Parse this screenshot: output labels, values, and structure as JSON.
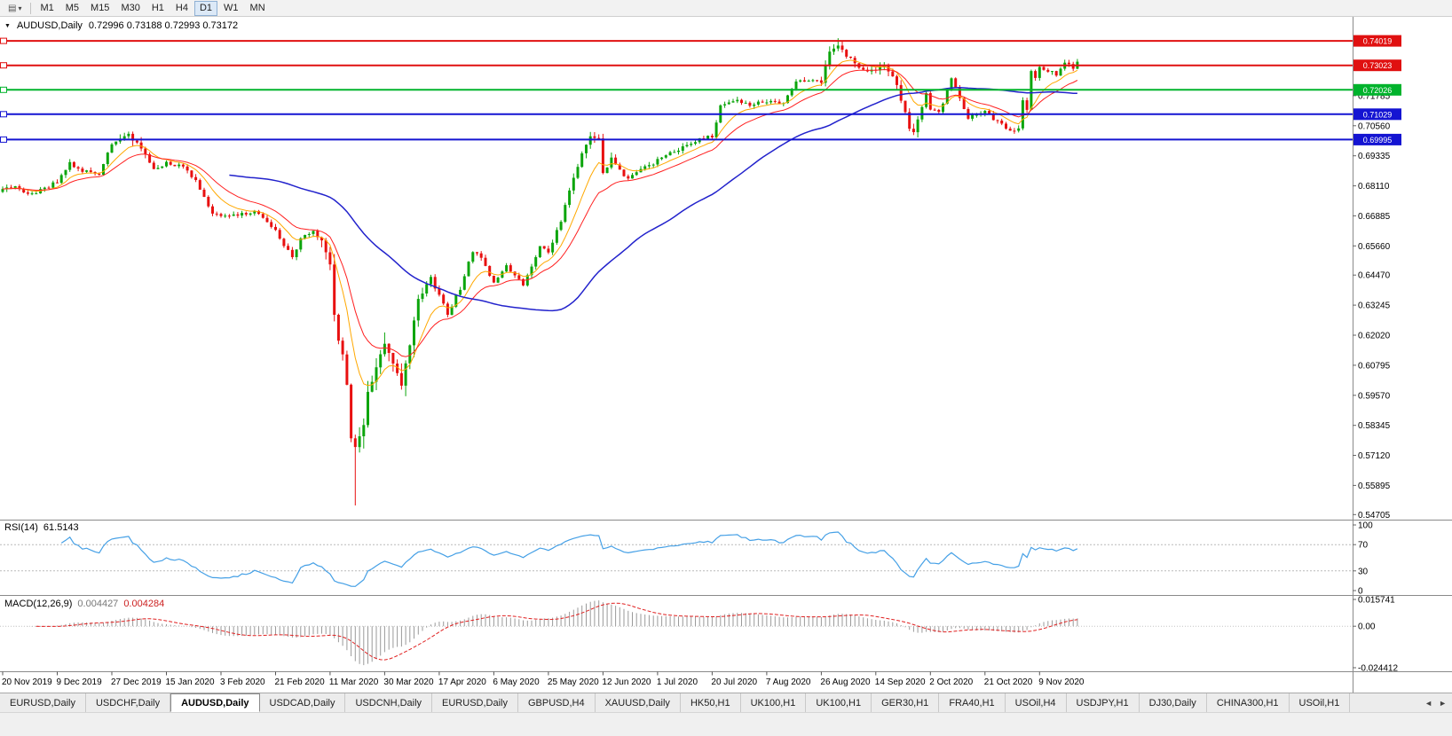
{
  "icons": {
    "chart": "▤",
    "caret": "▾",
    "collapse": "▼",
    "nav_left": "◄",
    "nav_right": "►"
  },
  "toolbar": {
    "timeframes": [
      {
        "label": "M1",
        "active": false
      },
      {
        "label": "M5",
        "active": false
      },
      {
        "label": "M15",
        "active": false
      },
      {
        "label": "M30",
        "active": false
      },
      {
        "label": "H1",
        "active": false
      },
      {
        "label": "H4",
        "active": false
      },
      {
        "label": "D1",
        "active": true
      },
      {
        "label": "W1",
        "active": false
      },
      {
        "label": "MN",
        "active": false
      }
    ]
  },
  "chart": {
    "title": "AUDUSD,Daily",
    "ohlc": "0.72996 0.73188 0.72993 0.73172",
    "price_axis_labels": [
      "0.71785",
      "0.70560",
      "0.69335",
      "0.68110",
      "0.66885",
      "0.65660",
      "0.64470",
      "0.63245",
      "0.62020",
      "0.60795",
      "0.59570",
      "0.58345",
      "0.57120",
      "0.55895",
      "0.54705"
    ],
    "price_range": [
      0.545,
      0.75
    ],
    "hlines": [
      {
        "price": 0.74019,
        "label": "0.74019",
        "color": "#e01010"
      },
      {
        "price": 0.73023,
        "label": "0.73023",
        "color": "#e01010"
      },
      {
        "price": 0.72026,
        "label": "0.72026",
        "color": "#00b32c"
      },
      {
        "price": 0.71029,
        "label": "0.71029",
        "color": "#1414d2"
      },
      {
        "price": 0.69995,
        "label": "0.69995",
        "color": "#1414d2"
      }
    ],
    "date_labels": [
      "20 Nov 2019",
      "9 Dec 2019",
      "27 Dec 2019",
      "15 Jan 2020",
      "3 Feb 2020",
      "21 Feb 2020",
      "11 Mar 2020",
      "30 Mar 2020",
      "17 Apr 2020",
      "6 May 2020",
      "25 May 2020",
      "12 Jun 2020",
      "1 Jul 2020",
      "20 Jul 2020",
      "7 Aug 2020",
      "26 Aug 2020",
      "14 Sep 2020",
      "2 Oct 2020",
      "21 Oct 2020",
      "9 Nov 2020"
    ],
    "bars_per_label": 13,
    "colors": {
      "up": "#0ca50c",
      "down": "#e81010",
      "axis_border": "#8a8a8a",
      "background": "#ffffff",
      "text": "#000000"
    }
  },
  "rsi": {
    "label": "RSI(14)",
    "value": "61.5143",
    "levels": [
      "100",
      "70",
      "30",
      "0"
    ],
    "level_values": [
      100,
      70,
      30,
      0
    ],
    "dashed_levels": [
      70,
      30
    ],
    "range": [
      0,
      100
    ],
    "color": "#45a0e6"
  },
  "macd": {
    "label": "MACD(12,26,9)",
    "value_main": "0.004427",
    "value_signal": "0.004284",
    "axis_labels": [
      "0.015741",
      "0.00",
      "-0.024412"
    ],
    "axis_values": [
      0.015741,
      0,
      -0.024412
    ],
    "range": [
      -0.024412,
      0.015741
    ],
    "hist_color": "#9a9a9a",
    "signal_color": "#e02020"
  },
  "tabs": {
    "items": [
      {
        "label": "EURUSD,Daily",
        "active": false
      },
      {
        "label": "USDCHF,Daily",
        "active": false
      },
      {
        "label": "AUDUSD,Daily",
        "active": true
      },
      {
        "label": "USDCAD,Daily",
        "active": false
      },
      {
        "label": "USDCNH,Daily",
        "active": false
      },
      {
        "label": "EURUSD,Daily",
        "active": false
      },
      {
        "label": "GBPUSD,H4",
        "active": false
      },
      {
        "label": "XAUUSD,Daily",
        "active": false
      },
      {
        "label": "HK50,H1",
        "active": false
      },
      {
        "label": "UK100,H1",
        "active": false
      },
      {
        "label": "UK100,H1",
        "active": false
      },
      {
        "label": "GER30,H1",
        "active": false
      },
      {
        "label": "FRA40,H1",
        "active": false
      },
      {
        "label": "USOil,H4",
        "active": false
      },
      {
        "label": "USDJPY,H1",
        "active": false
      },
      {
        "label": "DJ30,Daily",
        "active": false
      },
      {
        "label": "CHINA300,H1",
        "active": false
      },
      {
        "label": "USOil,H1",
        "active": false
      }
    ]
  },
  "chart_data": {
    "type": "candlestick",
    "symbol": "AUDUSD",
    "timeframe": "Daily",
    "bar_count": 257,
    "last_close": 0.73172,
    "ohlc_current": {
      "open": 0.72996,
      "high": 0.73188,
      "low": 0.72993,
      "close": 0.73172
    },
    "close_anchors": [
      [
        0,
        0.6793
      ],
      [
        3,
        0.6812
      ],
      [
        6,
        0.6772
      ],
      [
        9,
        0.679
      ],
      [
        13,
        0.6826
      ],
      [
        16,
        0.6905
      ],
      [
        19,
        0.6872
      ],
      [
        23,
        0.6858
      ],
      [
        26,
        0.6986
      ],
      [
        30,
        0.7023
      ],
      [
        33,
        0.6962
      ],
      [
        36,
        0.6873
      ],
      [
        39,
        0.6903
      ],
      [
        43,
        0.6887
      ],
      [
        46,
        0.6827
      ],
      [
        50,
        0.6691
      ],
      [
        53,
        0.6695
      ],
      [
        56,
        0.6686
      ],
      [
        60,
        0.6712
      ],
      [
        63,
        0.6662
      ],
      [
        65,
        0.6627
      ],
      [
        69,
        0.6515
      ],
      [
        71,
        0.6596
      ],
      [
        74,
        0.6635
      ],
      [
        76,
        0.6582
      ],
      [
        78,
        0.6489
      ],
      [
        79,
        0.6287
      ],
      [
        80,
        0.6184
      ],
      [
        81,
        0.6122
      ],
      [
        82,
        0.5995
      ],
      [
        83,
        0.5777
      ],
      [
        84,
        0.5745
      ],
      [
        86,
        0.583
      ],
      [
        87,
        0.5966
      ],
      [
        89,
        0.6065
      ],
      [
        91,
        0.6173
      ],
      [
        93,
        0.6094
      ],
      [
        95,
        0.5998
      ],
      [
        97,
        0.6167
      ],
      [
        99,
        0.6349
      ],
      [
        102,
        0.6436
      ],
      [
        104,
        0.6364
      ],
      [
        106,
        0.629
      ],
      [
        109,
        0.6393
      ],
      [
        112,
        0.6546
      ],
      [
        114,
        0.6511
      ],
      [
        117,
        0.6418
      ],
      [
        120,
        0.6482
      ],
      [
        124,
        0.6412
      ],
      [
        128,
        0.6566
      ],
      [
        130,
        0.6537
      ],
      [
        133,
        0.6667
      ],
      [
        135,
        0.6797
      ],
      [
        138,
        0.6938
      ],
      [
        140,
        0.7019
      ],
      [
        142,
        0.6999
      ],
      [
        143,
        0.6866
      ],
      [
        145,
        0.692
      ],
      [
        149,
        0.6836
      ],
      [
        152,
        0.6874
      ],
      [
        156,
        0.6916
      ],
      [
        162,
        0.6965
      ],
      [
        166,
        0.7006
      ],
      [
        169,
        0.7013
      ],
      [
        171,
        0.7139
      ],
      [
        175,
        0.7159
      ],
      [
        178,
        0.7143
      ],
      [
        182,
        0.7157
      ],
      [
        186,
        0.7147
      ],
      [
        189,
        0.7244
      ],
      [
        195,
        0.7238
      ],
      [
        197,
        0.7365
      ],
      [
        199,
        0.7376
      ],
      [
        201,
        0.7344
      ],
      [
        205,
        0.728
      ],
      [
        208,
        0.7287
      ],
      [
        210,
        0.7305
      ],
      [
        213,
        0.7222
      ],
      [
        216,
        0.7049
      ],
      [
        217,
        0.7031
      ],
      [
        220,
        0.7183
      ],
      [
        221,
        0.7122
      ],
      [
        223,
        0.7106
      ],
      [
        226,
        0.7243
      ],
      [
        230,
        0.7089
      ],
      [
        234,
        0.7113
      ],
      [
        239,
        0.7045
      ],
      [
        241,
        0.7028
      ],
      [
        242,
        0.7053
      ],
      [
        243,
        0.7166
      ],
      [
        244,
        0.712
      ],
      [
        245,
        0.7284
      ],
      [
        246,
        0.7256
      ],
      [
        247,
        0.7288
      ],
      [
        249,
        0.7283
      ],
      [
        251,
        0.7268
      ],
      [
        253,
        0.7318
      ],
      [
        255,
        0.7296
      ],
      [
        256,
        0.73172
      ]
    ],
    "overrides": {
      "30": {
        "high": 0.7032
      },
      "84": {
        "low": 0.5508
      },
      "199": {
        "high": 0.7413
      }
    },
    "ma": [
      {
        "type": "ema",
        "period": 9,
        "color": "#ffa800",
        "width": 1
      },
      {
        "type": "ema",
        "period": 18,
        "color": "#ff2020",
        "width": 1
      },
      {
        "type": "sma",
        "period": 55,
        "color": "#2222cc",
        "width": 1.5
      }
    ],
    "indicators": {
      "rsi_period": 14,
      "macd_params": [
        12,
        26,
        9
      ]
    }
  }
}
